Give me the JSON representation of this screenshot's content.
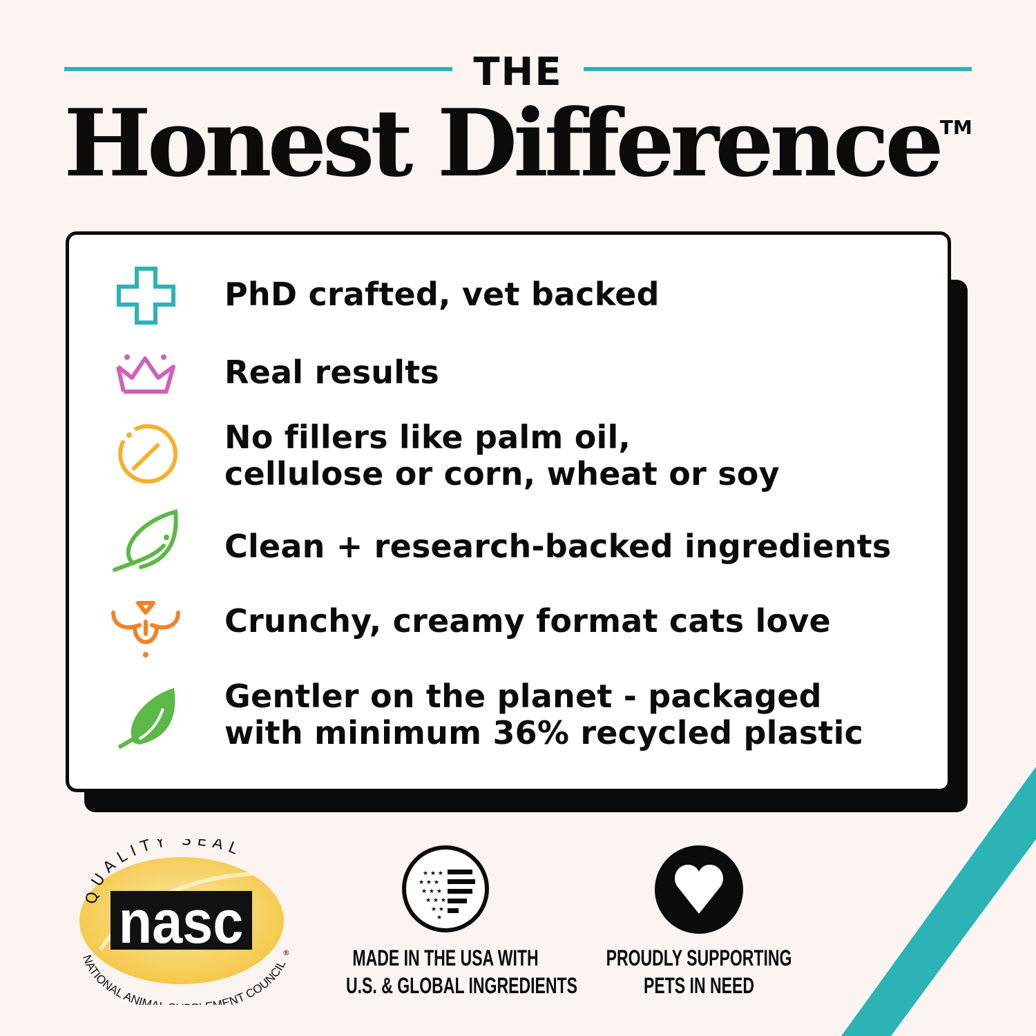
{
  "header": {
    "pre_title": "THE",
    "title": "Honest Difference",
    "trademark": "TM"
  },
  "colors": {
    "teal": "#2bb3b6",
    "pink": "#d061b5",
    "yellow": "#f6b12a",
    "green": "#5cb848",
    "orange": "#f28229",
    "background": "#fcf4f1"
  },
  "benefits": [
    {
      "icon": "medical-cross-icon",
      "lines": [
        "PhD crafted, vet backed"
      ]
    },
    {
      "icon": "crown-icon",
      "lines": [
        "Real results"
      ]
    },
    {
      "icon": "no-symbol-icon",
      "lines": [
        "No fillers like palm oil,",
        "cellulose or corn, wheat or soy"
      ]
    },
    {
      "icon": "leaf-outline-icon",
      "lines": [
        "Clean + research-backed ingredients"
      ]
    },
    {
      "icon": "cat-face-icon",
      "lines": [
        "Crunchy, creamy format cats love"
      ]
    },
    {
      "icon": "leaf-solid-icon",
      "lines": [
        "Gentler on the planet - packaged",
        "with minimum 36% recycled plastic"
      ]
    }
  ],
  "badges": {
    "nasc": {
      "top_text": "QUALITY SEAL",
      "logo_text": "nasc",
      "bottom_text": "NATIONAL ANIMAL SUPPLEMENT COUNCIL",
      "registered": "®"
    },
    "usa": {
      "icon": "flag-heart-icon",
      "lines": [
        "MADE IN THE USA WITH",
        "U.S. & GLOBAL INGREDIENTS"
      ]
    },
    "pets": {
      "icon": "heart-icon",
      "lines": [
        "PROUDLY SUPPORTING",
        "PETS IN NEED"
      ]
    }
  }
}
